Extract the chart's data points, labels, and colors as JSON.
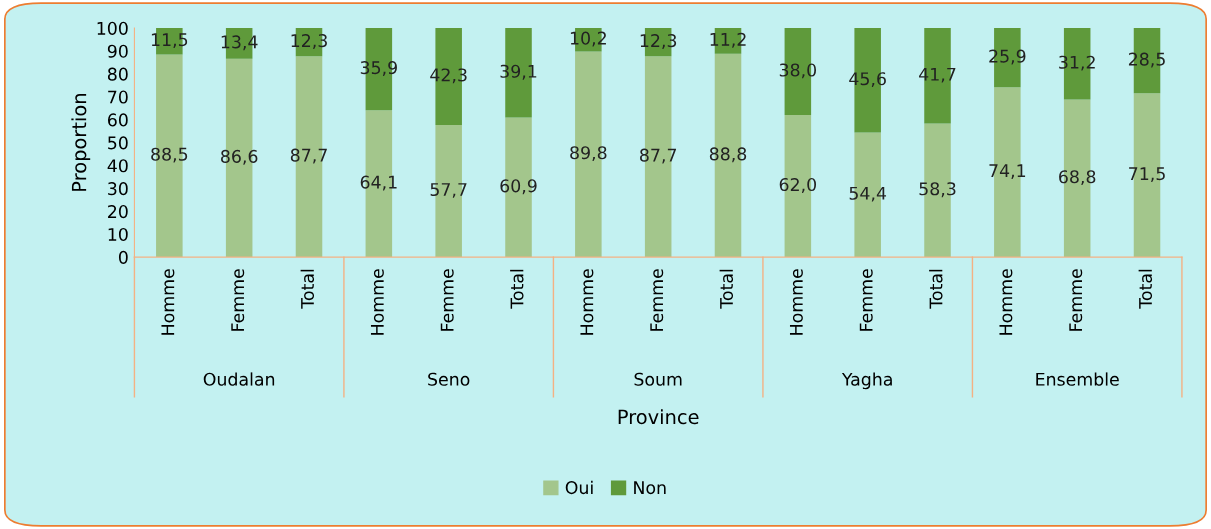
{
  "chart_data": {
    "type": "bar",
    "stacked": true,
    "xlabel": "Province",
    "ylabel": "Proportion",
    "categories": [
      "Homme",
      "Femme",
      "Total",
      "Homme",
      "Femme",
      "Total",
      "Homme",
      "Femme",
      "Total",
      "Homme",
      "Femme",
      "Total",
      "Homme",
      "Femme",
      "Total"
    ],
    "annotations": [
      "Oudalan",
      "Seno",
      "Soum",
      "Yagha",
      "Ensemble"
    ],
    "series": [
      {
        "name": "Oui",
        "color": "#a3c68c",
        "values": [
          88.5,
          86.6,
          87.7,
          64.1,
          57.7,
          60.9,
          89.8,
          87.7,
          88.8,
          62.0,
          54.4,
          58.3,
          74.1,
          68.8,
          71.5
        ],
        "value_labels": [
          "88,5",
          "86,6",
          "87,7",
          "64,1",
          "57,7",
          "60,9",
          "89,8",
          "87,7",
          "88,8",
          "62,0",
          "54,4",
          "58,3",
          "74,1",
          "68,8",
          "71,5"
        ]
      },
      {
        "name": "Non",
        "color": "#5f9a3b",
        "values": [
          11.5,
          13.4,
          12.3,
          35.9,
          42.3,
          39.1,
          10.2,
          12.3,
          11.2,
          38.0,
          45.6,
          41.7,
          25.9,
          31.2,
          28.5
        ],
        "value_labels": [
          "11,5",
          "13,4",
          "12,3",
          "35,9",
          "42,3",
          "39,1",
          "10,2",
          "12,3",
          "11,2",
          "38,0",
          "45,6",
          "41,7",
          "25,9",
          "31,2",
          "28,5"
        ]
      }
    ],
    "ylim": [
      0,
      100
    ],
    "yticks": [
      0,
      10,
      20,
      30,
      40,
      50,
      60,
      70,
      80,
      90,
      100
    ],
    "grid": false,
    "legend": "bottom"
  }
}
